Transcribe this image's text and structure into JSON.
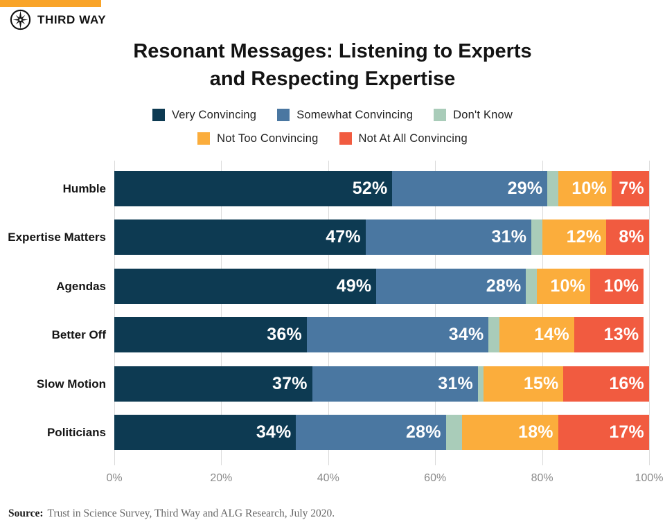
{
  "brand": {
    "name": "THIRD WAY",
    "accent_color": "#F9A429",
    "logo_icon": "compass-star-icon"
  },
  "title_lines": [
    "Resonant Messages: Listening to Experts",
    "and Respecting Expertise"
  ],
  "legend": {
    "rows": [
      [
        0,
        1,
        2
      ],
      [
        3,
        4
      ]
    ]
  },
  "source": {
    "label": "Source:",
    "text": "Trust in Science Survey, Third Way and ALG Research, July 2020."
  },
  "chart_data": {
    "type": "bar",
    "orientation": "horizontal-stacked",
    "title": "Resonant Messages: Listening to Experts and Respecting Expertise",
    "categories": [
      "Humble",
      "Expertise Matters",
      "Agendas",
      "Better Off",
      "Slow Motion",
      "Politicians"
    ],
    "series": [
      {
        "name": "Very Convincing",
        "color": "#0D3A52",
        "values": [
          52,
          47,
          49,
          36,
          37,
          34
        ],
        "show_labels": true
      },
      {
        "name": "Somewhat Convincing",
        "color": "#4A77A1",
        "values": [
          29,
          31,
          28,
          34,
          31,
          28
        ],
        "show_labels": true
      },
      {
        "name": "Don't Know",
        "color": "#A9CCB9",
        "values": [
          2,
          2,
          2,
          2,
          1,
          3
        ],
        "show_labels": false
      },
      {
        "name": "Not Too Convincing",
        "color": "#FBAD3C",
        "values": [
          10,
          12,
          10,
          14,
          15,
          18
        ],
        "show_labels": true
      },
      {
        "name": "Not At All Convincing",
        "color": "#F15B40",
        "values": [
          7,
          8,
          10,
          13,
          16,
          17
        ],
        "show_labels": true
      }
    ],
    "value_suffix": "%",
    "x_ticks": [
      "0%",
      "20%",
      "40%",
      "60%",
      "80%",
      "100%"
    ],
    "xlim": [
      0,
      100
    ],
    "grid": true,
    "legend_position": "top"
  }
}
